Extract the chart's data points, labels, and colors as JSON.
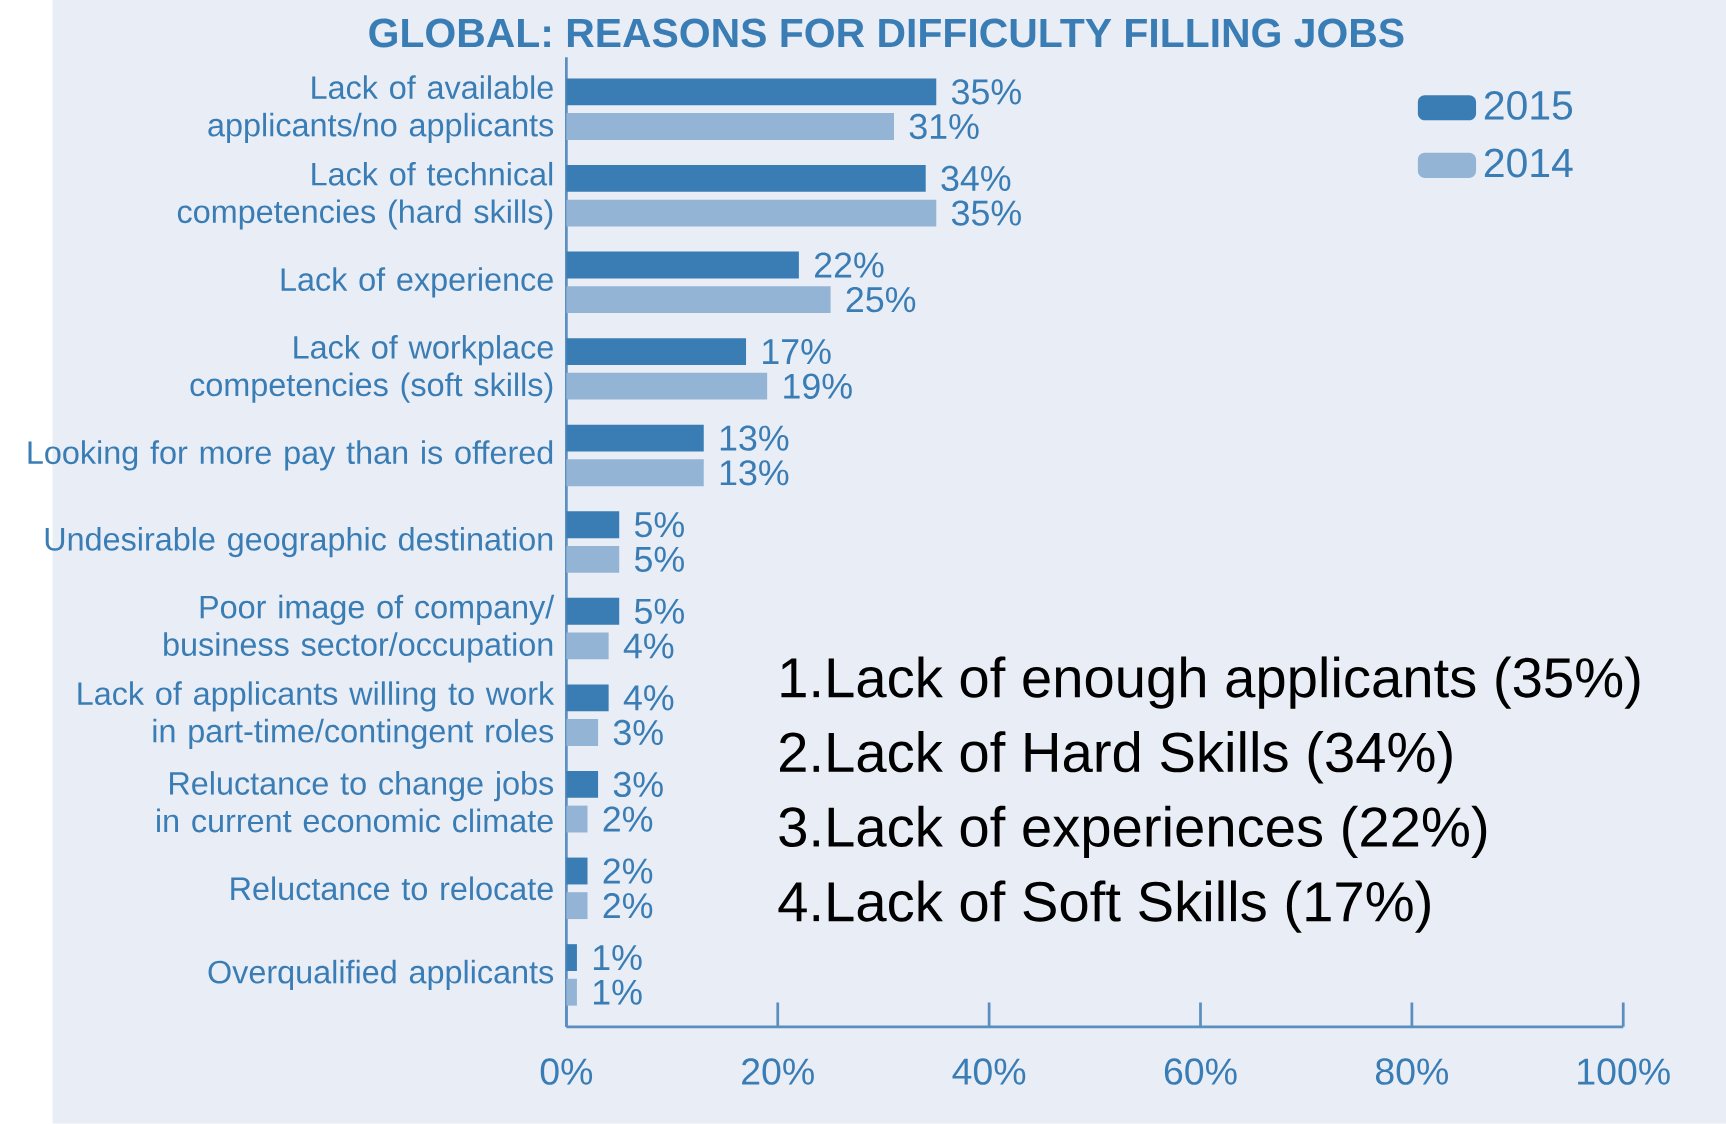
{
  "chart_data": {
    "type": "bar",
    "orientation": "horizontal",
    "title": "GLOBAL: REASONS FOR DIFFICULTY FILLING JOBS",
    "categories": [
      "Lack of available applicants/no applicants",
      "Lack of technical competencies (hard skills)",
      "Lack of experience",
      "Lack of workplace competencies (soft skills)",
      "Looking for more pay than is offered",
      "Undesirable geographic destination",
      "Poor image of company/ business sector/occupation",
      "Lack of applicants willing to work in part-time/contingent roles",
      "Reluctance to change jobs in current economic climate",
      "Reluctance to relocate",
      "Overqualified applicants"
    ],
    "series": [
      {
        "name": "2015",
        "color": "#3a7db5",
        "values": [
          35,
          34,
          22,
          17,
          13,
          5,
          5,
          4,
          3,
          2,
          1
        ],
        "value_labels": [
          "35%",
          "34%",
          "22%",
          "17%",
          "13%",
          "5%",
          "5%",
          "4%",
          "3%",
          "2%",
          "1%"
        ]
      },
      {
        "name": "2014",
        "color": "#94b4d6",
        "values": [
          31,
          35,
          25,
          19,
          13,
          5,
          4,
          3,
          2,
          2,
          1
        ],
        "value_labels": [
          "31%",
          "35%",
          "25%",
          "19%",
          "13%",
          "5%",
          "4%",
          "3%",
          "2%",
          "2%",
          "1%"
        ]
      }
    ],
    "xlim": [
      0,
      100
    ],
    "xticks": [
      {
        "value": 0,
        "label": "0%"
      },
      {
        "value": 20,
        "label": "20%"
      },
      {
        "value": 40,
        "label": "40%"
      },
      {
        "value": 60,
        "label": "60%"
      },
      {
        "value": 80,
        "label": "80%"
      },
      {
        "value": 100,
        "label": "100%"
      }
    ],
    "legend": "top right",
    "annotations": [
      "1.Lack of enough applicants (35%)",
      "2.Lack of Hard Skills (34%)",
      "3.Lack of experiences (22%)",
      "4.Lack of Soft Skills (17%)"
    ]
  }
}
